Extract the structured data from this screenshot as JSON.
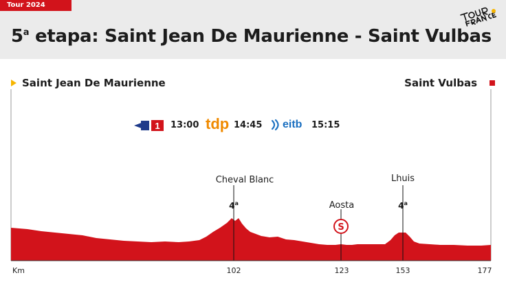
{
  "header": {
    "tag": "Tour 2024",
    "title_num": "5",
    "title_sup": "a",
    "title_text": " etapa: Saint Jean De Maurienne - Saint Vulbas",
    "logo_text": "TOUR DE FRANCE"
  },
  "route": {
    "start": "Saint Jean De Maurienne",
    "end": "Saint Vulbas"
  },
  "broadcasters": [
    {
      "name": "La 1",
      "time": "13:00"
    },
    {
      "name": "tdp",
      "time": "14:45"
    },
    {
      "name": "eitb",
      "time": "15:15"
    }
  ],
  "broadcast_logos": {
    "tdp": "tdp",
    "eitb": "eitb",
    "la1": "1"
  },
  "points": {
    "cheval_blanc": {
      "name": "Cheval Blanc",
      "cat": "4",
      "cat_sup": "a"
    },
    "aosta": {
      "name": "Aosta",
      "sprint_letter": "S"
    },
    "lhuis": {
      "name": "Lhuis",
      "cat": "4",
      "cat_sup": "a"
    }
  },
  "axis": {
    "unit": "Km",
    "ticks": [
      "102",
      "123",
      "153",
      "177"
    ]
  },
  "colors": {
    "profile": "#d2131b",
    "accent": "#f6b500",
    "tdp": "#f08a00",
    "eitb": "#1a6fc0"
  }
}
